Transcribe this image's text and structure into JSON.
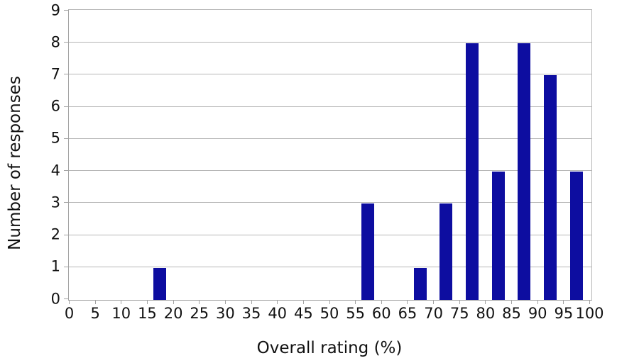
{
  "chart_data": {
    "type": "bar",
    "title": "",
    "xlabel": "Overall rating (%)",
    "ylabel": "Number of responses",
    "xlim": [
      0,
      100
    ],
    "ylim": [
      0,
      9
    ],
    "x_tick_interval": 5,
    "x_tick_labels": [
      "0",
      "5",
      "10",
      "15",
      "20",
      "25",
      "30",
      "35",
      "40",
      "45",
      "50",
      "55",
      "60",
      "65",
      "70",
      "75",
      "80",
      "85",
      "90",
      "95",
      "100"
    ],
    "y_tick_labels": [
      "0",
      "1",
      "2",
      "3",
      "4",
      "5",
      "6",
      "7",
      "8",
      "9"
    ],
    "grid": "horizontal",
    "legend": "none",
    "series": [
      {
        "name": "Number of responses",
        "x": [
          17.5,
          57.5,
          67.5,
          72.5,
          77.5,
          82.5,
          87.5,
          92.5,
          97.5
        ],
        "values": [
          1,
          3,
          1,
          3,
          8,
          4,
          8,
          7,
          4
        ]
      }
    ],
    "bins": [
      {
        "range": "15-20",
        "count": 1
      },
      {
        "range": "55-60",
        "count": 3
      },
      {
        "range": "65-70",
        "count": 1
      },
      {
        "range": "70-75",
        "count": 3
      },
      {
        "range": "75-80",
        "count": 8
      },
      {
        "range": "80-85",
        "count": 4
      },
      {
        "range": "85-90",
        "count": 8
      },
      {
        "range": "90-95",
        "count": 7
      },
      {
        "range": "95-100",
        "count": 4
      }
    ]
  },
  "colors": {
    "bar": "#0d0da0",
    "gridline": "#b6b6b6",
    "axis": "#a3a3a3",
    "text": "#111111",
    "background": "#ffffff"
  }
}
